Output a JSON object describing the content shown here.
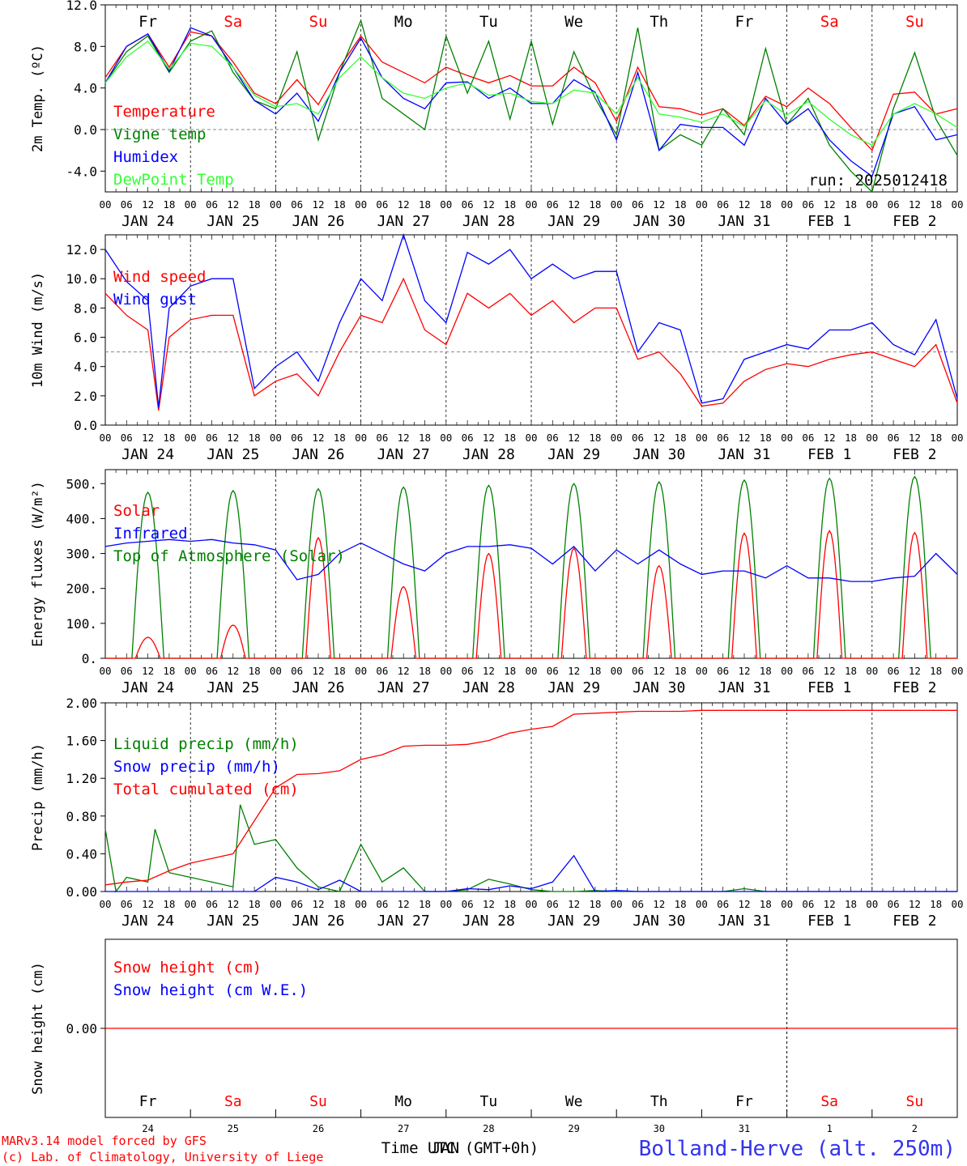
{
  "meteogram": {
    "run_label": "run: 2025012418",
    "footer_left_1": "MARv3.14 model forced by GFS",
    "footer_left_2": "(c) Lab. of Climatology, University of Liege",
    "footer_center": "Time UTC (GMT+0h)",
    "footer_center_overlap": "JAN",
    "station": "Bolland-Herve (alt. 250m)",
    "hour_labels": [
      "00",
      "06",
      "12",
      "18"
    ],
    "end_hour_label": "00",
    "date_labels": [
      "JAN 24",
      "JAN 25",
      "JAN 26",
      "JAN 27",
      "JAN 28",
      "JAN 29",
      "JAN 30",
      "JAN 31",
      "FEB  1",
      "FEB  2"
    ],
    "weekdays": [
      {
        "label": "Fr",
        "color": "#000000"
      },
      {
        "label": "Sa",
        "color": "#ff0000"
      },
      {
        "label": "Su",
        "color": "#ff0000"
      },
      {
        "label": "Mo",
        "color": "#000000"
      },
      {
        "label": "Tu",
        "color": "#000000"
      },
      {
        "label": "We",
        "color": "#000000"
      },
      {
        "label": "Th",
        "color": "#000000"
      },
      {
        "label": "Fr",
        "color": "#000000"
      },
      {
        "label": "Sa",
        "color": "#ff0000"
      },
      {
        "label": "Su",
        "color": "#ff0000"
      }
    ],
    "day_numbers": [
      "24",
      "25",
      "26",
      "27",
      "28",
      "29",
      "30",
      "31",
      "1",
      "2"
    ]
  },
  "chart_data": [
    {
      "type": "line",
      "ylabel": "2m Temp. (ºC)",
      "ylim": [
        -6,
        12
      ],
      "yticks": [
        "12.0",
        "8.0",
        "4.0",
        "0.0",
        "-4.0"
      ],
      "x_unit": "hours since JAN 24 00 UTC",
      "series": [
        {
          "name": "Temperature",
          "color": "#ff0000",
          "x": [
            0,
            6,
            12,
            18,
            24,
            30,
            36,
            42,
            48,
            54,
            60,
            66,
            72,
            78,
            84,
            90,
            96,
            102,
            108,
            114,
            120,
            126,
            132,
            138,
            144,
            150,
            156,
            162,
            168,
            174,
            180,
            186,
            192,
            198,
            204,
            210,
            216,
            222,
            228,
            234,
            240
          ],
          "y": [
            5,
            8,
            9.2,
            6,
            9.4,
            9,
            6.5,
            3.5,
            2.5,
            4.8,
            2.4,
            6,
            9,
            6.5,
            5.5,
            4.5,
            6,
            5.2,
            4.5,
            5.2,
            4.2,
            4.2,
            6,
            4.5,
            0.8,
            6,
            2.2,
            2,
            1.4,
            2,
            0.4,
            3.2,
            2.2,
            4,
            2.5,
            0.2,
            -2,
            3.4,
            3.6,
            1.5,
            2
          ]
        },
        {
          "name": "Vigne temp",
          "color": "#008000",
          "x": [
            0,
            6,
            12,
            18,
            24,
            30,
            36,
            42,
            48,
            54,
            60,
            66,
            72,
            78,
            84,
            90,
            96,
            102,
            108,
            114,
            120,
            126,
            132,
            138,
            144,
            150,
            156,
            162,
            168,
            174,
            180,
            186,
            192,
            198,
            204,
            210,
            216,
            222,
            228,
            234,
            240
          ],
          "y": [
            4.5,
            7.5,
            9,
            5.5,
            8.5,
            9.5,
            5.5,
            2.8,
            2,
            7.5,
            -1,
            5.5,
            10.5,
            3,
            1.5,
            0,
            9,
            3.5,
            8.5,
            1,
            8.5,
            0.5,
            7.5,
            3,
            -0.5,
            9.8,
            -2,
            -0.5,
            -1.5,
            2,
            -0.5,
            7.8,
            0.5,
            3,
            -1.5,
            -4,
            -6,
            2,
            7.4,
            1,
            -2.5
          ]
        },
        {
          "name": "Humidex",
          "color": "#0000ff",
          "x": [
            0,
            6,
            12,
            18,
            24,
            30,
            36,
            42,
            48,
            54,
            60,
            66,
            72,
            78,
            84,
            90,
            96,
            102,
            108,
            114,
            120,
            126,
            132,
            138,
            144,
            150,
            156,
            162,
            168,
            174,
            180,
            186,
            192,
            198,
            204,
            210,
            216,
            222,
            228,
            234,
            240
          ],
          "y": [
            4.5,
            8,
            9.2,
            5.6,
            9.8,
            9,
            6,
            2.8,
            1.5,
            3.5,
            0.8,
            5.5,
            8.8,
            5,
            3,
            2,
            4.5,
            4.6,
            3,
            4,
            2.5,
            2.5,
            4.8,
            3.6,
            -1,
            5.5,
            -2,
            0.5,
            0.2,
            0.2,
            -1.5,
            3,
            0.5,
            2,
            -1,
            -3,
            -4.5,
            1.5,
            2.2,
            -1,
            -0.5
          ]
        },
        {
          "name": "DewPoint Temp",
          "color": "#33ff33",
          "x": [
            0,
            6,
            12,
            18,
            24,
            30,
            36,
            42,
            48,
            54,
            60,
            66,
            72,
            78,
            84,
            90,
            96,
            102,
            108,
            114,
            120,
            126,
            132,
            138,
            144,
            150,
            156,
            162,
            168,
            174,
            180,
            186,
            192,
            198,
            204,
            210,
            216,
            222,
            228,
            234,
            240
          ],
          "y": [
            4.5,
            7,
            8.5,
            5.8,
            8.3,
            8,
            6,
            3.3,
            2.2,
            2.5,
            1.5,
            5,
            7,
            5,
            3.5,
            3,
            4,
            4.5,
            3.3,
            3.5,
            2.7,
            2.5,
            3.8,
            3.5,
            1.5,
            5,
            1.5,
            1.2,
            0.7,
            1.5,
            0.3,
            2.8,
            1.4,
            2.7,
            1,
            -0.5,
            -1.5,
            1.5,
            2.5,
            1.5,
            0.2
          ]
        }
      ],
      "reference_line": 0
    },
    {
      "type": "line",
      "ylabel": "10m Wind (m/s)",
      "ylim": [
        0,
        13
      ],
      "yticks": [
        "12.0",
        "10.0",
        "8.0",
        "6.0",
        "4.0",
        "2.0",
        "0.0"
      ],
      "x_unit": "hours since JAN 24 00 UTC",
      "series": [
        {
          "name": "Wind speed",
          "color": "#ff0000",
          "x": [
            0,
            6,
            12,
            15,
            18,
            24,
            30,
            36,
            42,
            48,
            54,
            60,
            66,
            72,
            78,
            84,
            90,
            96,
            102,
            108,
            114,
            120,
            126,
            132,
            138,
            144,
            150,
            156,
            162,
            168,
            174,
            180,
            186,
            192,
            198,
            204,
            210,
            216,
            222,
            228,
            234,
            240
          ],
          "y": [
            9,
            7.5,
            6.5,
            1,
            6,
            7.2,
            7.5,
            7.5,
            2,
            3,
            3.5,
            2,
            5,
            7.5,
            7,
            10,
            6.5,
            5.5,
            9,
            8,
            9,
            7.5,
            8.5,
            7,
            8,
            8,
            4.5,
            5,
            3.5,
            1.3,
            1.5,
            3,
            3.8,
            4.2,
            4,
            4.5,
            4.8,
            5,
            4.5,
            4,
            5.5,
            1.5
          ]
        },
        {
          "name": "Wind gust",
          "color": "#0000ff",
          "x": [
            0,
            6,
            12,
            15,
            18,
            24,
            30,
            36,
            42,
            48,
            54,
            60,
            66,
            72,
            78,
            84,
            90,
            96,
            102,
            108,
            114,
            120,
            126,
            132,
            138,
            144,
            150,
            156,
            162,
            168,
            174,
            180,
            186,
            192,
            198,
            204,
            210,
            216,
            222,
            228,
            234,
            240
          ],
          "y": [
            12,
            9.8,
            8.5,
            1.2,
            8,
            9.5,
            10,
            10,
            2.5,
            4,
            5,
            3,
            7,
            10,
            8.5,
            13,
            8.5,
            7,
            11.8,
            11,
            12,
            10,
            11,
            10,
            10.5,
            10.5,
            5,
            7,
            6.5,
            1.5,
            1.8,
            4.5,
            5,
            5.5,
            5.2,
            6.5,
            6.5,
            7,
            5.5,
            4.8,
            7.2,
            1.8
          ]
        }
      ],
      "reference_line": 5
    },
    {
      "type": "line",
      "ylabel": "Energy fluxes (W/m²)",
      "ylim": [
        0,
        540
      ],
      "yticks": [
        "500.",
        "400.",
        "300.",
        "200.",
        "100.",
        "0."
      ],
      "x_unit": "hours since JAN 24 00 UTC",
      "series": [
        {
          "name": "Solar",
          "color": "#ff0000",
          "peaks": [
            60,
            95,
            345,
            205,
            300,
            315,
            265,
            358,
            365,
            360
          ]
        },
        {
          "name": "Infrared",
          "color": "#0000ff",
          "x": [
            0,
            6,
            12,
            18,
            24,
            30,
            36,
            42,
            48,
            54,
            60,
            66,
            72,
            78,
            84,
            90,
            96,
            102,
            108,
            114,
            120,
            126,
            132,
            138,
            144,
            150,
            156,
            162,
            168,
            174,
            180,
            186,
            192,
            198,
            204,
            210,
            216,
            222,
            228,
            234,
            240
          ],
          "y": [
            320,
            330,
            335,
            340,
            335,
            340,
            330,
            325,
            310,
            225,
            240,
            300,
            330,
            300,
            270,
            250,
            300,
            320,
            320,
            325,
            315,
            270,
            320,
            250,
            310,
            270,
            310,
            270,
            240,
            250,
            250,
            230,
            265,
            230,
            230,
            220,
            220,
            230,
            235,
            300,
            240
          ]
        },
        {
          "name": "Top of Atmosphere (Solar)",
          "color": "#008000",
          "peaks": [
            475,
            480,
            485,
            490,
            495,
            500,
            505,
            510,
            515,
            520
          ]
        }
      ]
    },
    {
      "type": "line",
      "ylabel": "Precip (mm/h)",
      "ylim": [
        0,
        2
      ],
      "yticks": [
        "2.00",
        "1.60",
        "1.20",
        "0.80",
        "0.40",
        "0.00"
      ],
      "x_unit": "hours since JAN 24 00 UTC",
      "series": [
        {
          "name": "Liquid precip (mm/h)",
          "color": "#008000",
          "x": [
            0,
            3,
            6,
            12,
            14,
            18,
            24,
            30,
            36,
            38,
            42,
            48,
            54,
            60,
            66,
            72,
            78,
            84,
            90,
            96,
            102,
            108,
            114,
            120,
            126,
            132,
            138,
            144,
            150,
            156,
            162,
            168,
            174,
            180,
            186,
            192,
            198,
            204,
            210,
            216,
            222,
            228,
            234,
            240
          ],
          "y": [
            0.66,
            0,
            0.15,
            0.1,
            0.66,
            0.2,
            0.15,
            0.1,
            0.05,
            0.92,
            0.5,
            0.55,
            0.25,
            0.05,
            0,
            0.5,
            0.1,
            0.25,
            0,
            0,
            0.02,
            0.13,
            0.08,
            0.02,
            0,
            0,
            0.01,
            0,
            0,
            0,
            0,
            0,
            0,
            0.03,
            0,
            0,
            0,
            0,
            0,
            0,
            0,
            0,
            0,
            0
          ]
        },
        {
          "name": "Snow precip (mm/h)",
          "color": "#0000ff",
          "x": [
            0,
            6,
            12,
            18,
            24,
            30,
            36,
            42,
            48,
            54,
            60,
            66,
            72,
            78,
            84,
            90,
            96,
            102,
            108,
            114,
            120,
            126,
            132,
            138,
            144,
            150,
            156,
            162,
            168,
            174,
            180,
            186,
            192,
            198,
            204,
            210,
            216,
            222,
            228,
            234,
            240
          ],
          "y": [
            0,
            0,
            0,
            0,
            0,
            0,
            0,
            0,
            0.15,
            0.1,
            0.02,
            0.12,
            0,
            0,
            0,
            0,
            0,
            0.03,
            0.02,
            0.06,
            0.03,
            0.1,
            0.38,
            0,
            0.01,
            0,
            0,
            0,
            0,
            0,
            0,
            0,
            0,
            0,
            0,
            0,
            0,
            0,
            0,
            0,
            0
          ]
        },
        {
          "name": "Total cumulated (cm)",
          "color": "#ff0000",
          "x": [
            0,
            6,
            12,
            18,
            24,
            30,
            36,
            42,
            48,
            54,
            60,
            66,
            72,
            78,
            84,
            90,
            96,
            102,
            108,
            114,
            120,
            126,
            132,
            138,
            144,
            150,
            156,
            162,
            168,
            174,
            180,
            186,
            192,
            198,
            204,
            210,
            216,
            222,
            228,
            234,
            240
          ],
          "y": [
            0.07,
            0.1,
            0.12,
            0.22,
            0.3,
            0.35,
            0.4,
            0.75,
            1.1,
            1.24,
            1.25,
            1.28,
            1.4,
            1.45,
            1.54,
            1.55,
            1.55,
            1.56,
            1.6,
            1.68,
            1.72,
            1.75,
            1.88,
            1.89,
            1.9,
            1.91,
            1.91,
            1.91,
            1.92,
            1.92,
            1.92,
            1.92,
            1.92,
            1.92,
            1.92,
            1.92,
            1.92,
            1.92,
            1.92,
            1.92,
            1.92
          ]
        }
      ]
    },
    {
      "type": "line",
      "ylabel": "Snow height (cm)",
      "yticks": [
        "0.00"
      ],
      "series": [
        {
          "name": "Snow height (cm)",
          "color": "#ff0000",
          "y_constant": 0
        },
        {
          "name": "Snow height (cm W.E.)",
          "color": "#0000ff",
          "y_constant": 0
        }
      ]
    }
  ]
}
